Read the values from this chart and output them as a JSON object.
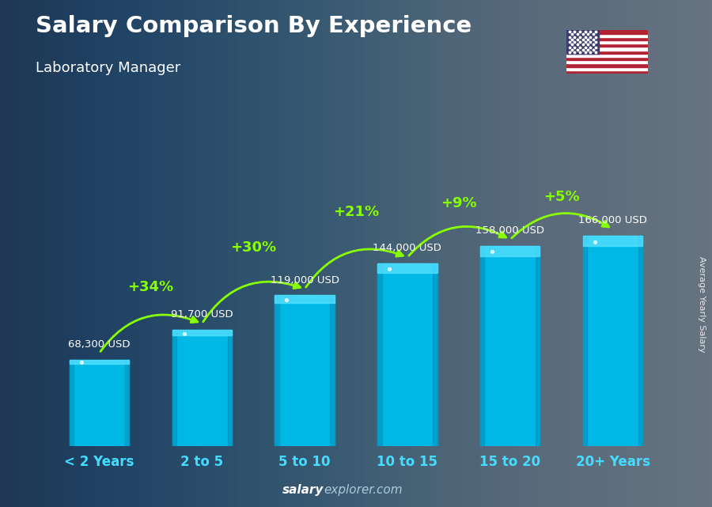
{
  "title": "Salary Comparison By Experience",
  "subtitle": "Laboratory Manager",
  "categories": [
    "< 2 Years",
    "2 to 5",
    "5 to 10",
    "10 to 15",
    "15 to 20",
    "20+ Years"
  ],
  "values": [
    68300,
    91700,
    119000,
    144000,
    158000,
    166000
  ],
  "labels": [
    "68,300 USD",
    "91,700 USD",
    "119,000 USD",
    "144,000 USD",
    "158,000 USD",
    "166,000 USD"
  ],
  "pct_changes": [
    "+34%",
    "+30%",
    "+21%",
    "+9%",
    "+5%"
  ],
  "bar_color_face": "#00b8e6",
  "bar_color_light": "#33d4f5",
  "bar_color_dark": "#0090bb",
  "bar_color_top": "#55e0ff",
  "bg_color": "#2a3a4a",
  "title_color": "#ffffff",
  "subtitle_color": "#ffffff",
  "label_color": "#ffffff",
  "pct_color": "#88ff00",
  "cat_color": "#44ddff",
  "ylabel_text": "Average Yearly Salary",
  "ylim": [
    0,
    220000
  ],
  "bar_width": 0.58
}
